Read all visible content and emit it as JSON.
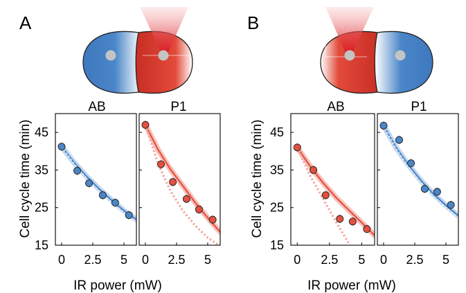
{
  "panel_letters": [
    "A",
    "B"
  ],
  "cell_labels": {
    "A": [
      "AB",
      "P1"
    ],
    "B": [
      "AB",
      "P1"
    ]
  },
  "colors": {
    "blue": "#4a86c8",
    "blue_light": "#a9c6e8",
    "red": "#e5503f",
    "red_light": "#f4a79d",
    "nucleus": "#c0c0c0"
  },
  "icons": [
    "laser-beam-icon",
    "blastomere-cell-icon",
    "nucleus-icon"
  ],
  "chart_data": [
    {
      "type": "scatter",
      "panel": "A",
      "cell": "AB",
      "irradiated": false,
      "color": "blue",
      "ylabel": "Cell cycle time (min)",
      "xlabel": "",
      "xlim": [
        -0.5,
        6
      ],
      "ylim": [
        15,
        50
      ],
      "x_ticks": [
        0,
        2.5,
        5
      ],
      "x_tick_labels": [
        "0",
        "2.5",
        "5"
      ],
      "y_ticks": [
        15,
        25,
        35,
        45
      ],
      "y_tick_labels": [
        "15",
        "25",
        "35",
        "45"
      ],
      "points": [
        {
          "x": 0,
          "y": 41.2
        },
        {
          "x": 1.25,
          "y": 34.8
        },
        {
          "x": 2.2,
          "y": 31.5
        },
        {
          "x": 3.3,
          "y": 28.3
        },
        {
          "x": 4.3,
          "y": 26.3
        },
        {
          "x": 5.4,
          "y": 23.0
        }
      ],
      "fit": [
        [
          0,
          41.2
        ],
        [
          1,
          37.0
        ],
        [
          2,
          33.3
        ],
        [
          3,
          30.0
        ],
        [
          4,
          27.0
        ],
        [
          5,
          24.2
        ],
        [
          6,
          21.8
        ]
      ],
      "dotted": [
        [
          0,
          41.2
        ],
        [
          1,
          36.7
        ],
        [
          2,
          32.8
        ],
        [
          3,
          29.4
        ],
        [
          4,
          26.4
        ],
        [
          5,
          23.7
        ],
        [
          6,
          21.3
        ]
      ]
    },
    {
      "type": "scatter",
      "panel": "A",
      "cell": "P1",
      "irradiated": true,
      "color": "red",
      "ylabel": "",
      "xlabel": "",
      "xlim": [
        -0.5,
        6
      ],
      "ylim": [
        15,
        50
      ],
      "x_ticks": [
        0,
        2.5,
        5
      ],
      "x_tick_labels": [
        "0",
        "2.5",
        "5"
      ],
      "y_ticks": [
        15,
        25,
        35,
        45
      ],
      "y_tick_labels": [],
      "points": [
        {
          "x": 0,
          "y": 47.0
        },
        {
          "x": 1.25,
          "y": 36.5
        },
        {
          "x": 2.2,
          "y": 31.8
        },
        {
          "x": 3.3,
          "y": 27.3
        },
        {
          "x": 4.3,
          "y": 24.5
        },
        {
          "x": 5.4,
          "y": 21.8
        }
      ],
      "fit": [
        [
          0,
          47.0
        ],
        [
          1,
          40.5
        ],
        [
          2,
          35.2
        ],
        [
          3,
          30.8
        ],
        [
          4,
          26.3
        ],
        [
          5,
          22.3
        ],
        [
          6,
          18.5
        ]
      ],
      "dotted": [
        [
          0,
          47.0
        ],
        [
          1,
          36.8
        ],
        [
          2,
          29.5
        ],
        [
          3,
          24.2
        ],
        [
          4,
          20.2
        ],
        [
          5,
          17.0
        ],
        [
          6,
          14.8
        ]
      ]
    },
    {
      "type": "scatter",
      "panel": "B",
      "cell": "AB",
      "irradiated": true,
      "color": "red",
      "ylabel": "Cell cycle time (min)",
      "xlabel": "",
      "xlim": [
        -0.5,
        6
      ],
      "ylim": [
        15,
        50
      ],
      "x_ticks": [
        0,
        2.5,
        5
      ],
      "x_tick_labels": [
        "0",
        "2.5",
        "5"
      ],
      "y_ticks": [
        15,
        25,
        35,
        45
      ],
      "y_tick_labels": [
        "15",
        "25",
        "35",
        "45"
      ],
      "points": [
        {
          "x": 0,
          "y": 41.0
        },
        {
          "x": 1.25,
          "y": 35.0
        },
        {
          "x": 2.2,
          "y": 28.3
        },
        {
          "x": 3.3,
          "y": 22.0
        },
        {
          "x": 4.3,
          "y": 21.3
        },
        {
          "x": 5.4,
          "y": 19.3
        }
      ],
      "fit": [
        [
          0,
          41.0
        ],
        [
          1,
          36.0
        ],
        [
          2,
          31.6
        ],
        [
          3,
          27.7
        ],
        [
          4,
          24.3
        ],
        [
          5,
          21.0
        ],
        [
          6,
          17.6
        ]
      ],
      "dotted": [
        [
          0,
          41.0
        ],
        [
          1,
          33.5
        ],
        [
          2,
          27.4
        ],
        [
          3,
          21.2
        ],
        [
          4,
          15.4
        ],
        [
          4.3,
          13.5
        ]
      ]
    },
    {
      "type": "scatter",
      "panel": "B",
      "cell": "P1",
      "irradiated": false,
      "color": "blue",
      "ylabel": "",
      "xlabel": "",
      "xlim": [
        -0.5,
        6
      ],
      "ylim": [
        15,
        50
      ],
      "x_ticks": [
        0,
        2.5,
        5
      ],
      "x_tick_labels": [
        "0",
        "2.5",
        "5"
      ],
      "y_ticks": [
        15,
        25,
        35,
        45
      ],
      "y_tick_labels": [],
      "points": [
        {
          "x": 0,
          "y": 46.8
        },
        {
          "x": 1.25,
          "y": 43.0
        },
        {
          "x": 2.2,
          "y": 36.8
        },
        {
          "x": 3.3,
          "y": 30.0
        },
        {
          "x": 4.3,
          "y": 29.2
        },
        {
          "x": 5.4,
          "y": 25.7
        }
      ],
      "fit": [
        [
          0,
          46.8
        ],
        [
          1,
          41.0
        ],
        [
          2,
          36.3
        ],
        [
          3,
          32.2
        ],
        [
          4,
          28.6
        ],
        [
          5,
          25.6
        ],
        [
          6,
          22.8
        ]
      ],
      "dotted": [
        [
          0,
          46.8
        ],
        [
          1,
          40.7
        ],
        [
          2,
          35.8
        ],
        [
          3,
          31.6
        ],
        [
          4,
          28.0
        ],
        [
          5,
          25.0
        ],
        [
          6,
          22.3
        ]
      ]
    }
  ],
  "shared_xlabel": "IR power (mW)"
}
